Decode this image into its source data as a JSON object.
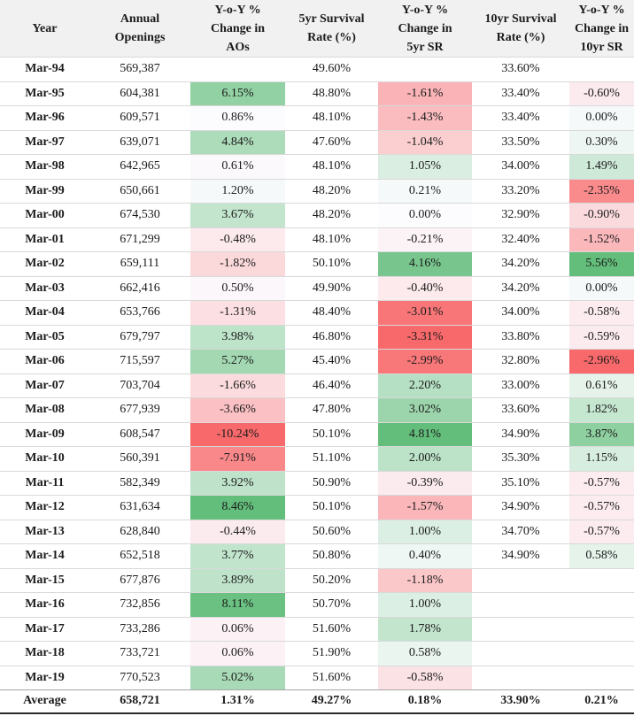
{
  "chart_data": {
    "type": "table",
    "columns": [
      "Year",
      "Annual\nOpenings",
      "Y-o-Y %\nChange in\nAOs",
      "5yr Survival\nRate (%)",
      "Y-o-Y %\nChange in\n5yr SR",
      "10yr Survival\nRate (%)",
      "Y-o-Y %\nChange in\n10yr SR"
    ],
    "rows": [
      [
        "Mar-94",
        "569,387",
        "",
        "49.60%",
        "",
        "33.60%",
        ""
      ],
      [
        "Mar-95",
        "604,381",
        "6.15%",
        "48.80%",
        "-1.61%",
        "33.40%",
        "-0.60%"
      ],
      [
        "Mar-96",
        "609,571",
        "0.86%",
        "48.10%",
        "-1.43%",
        "33.40%",
        "0.00%"
      ],
      [
        "Mar-97",
        "639,071",
        "4.84%",
        "47.60%",
        "-1.04%",
        "33.50%",
        "0.30%"
      ],
      [
        "Mar-98",
        "642,965",
        "0.61%",
        "48.10%",
        "1.05%",
        "34.00%",
        "1.49%"
      ],
      [
        "Mar-99",
        "650,661",
        "1.20%",
        "48.20%",
        "0.21%",
        "33.20%",
        "-2.35%"
      ],
      [
        "Mar-00",
        "674,530",
        "3.67%",
        "48.20%",
        "0.00%",
        "32.90%",
        "-0.90%"
      ],
      [
        "Mar-01",
        "671,299",
        "-0.48%",
        "48.10%",
        "-0.21%",
        "32.40%",
        "-1.52%"
      ],
      [
        "Mar-02",
        "659,111",
        "-1.82%",
        "50.10%",
        "4.16%",
        "34.20%",
        "5.56%"
      ],
      [
        "Mar-03",
        "662,416",
        "0.50%",
        "49.90%",
        "-0.40%",
        "34.20%",
        "0.00%"
      ],
      [
        "Mar-04",
        "653,766",
        "-1.31%",
        "48.40%",
        "-3.01%",
        "34.00%",
        "-0.58%"
      ],
      [
        "Mar-05",
        "679,797",
        "3.98%",
        "46.80%",
        "-3.31%",
        "33.80%",
        "-0.59%"
      ],
      [
        "Mar-06",
        "715,597",
        "5.27%",
        "45.40%",
        "-2.99%",
        "32.80%",
        "-2.96%"
      ],
      [
        "Mar-07",
        "703,704",
        "-1.66%",
        "46.40%",
        "2.20%",
        "33.00%",
        "0.61%"
      ],
      [
        "Mar-08",
        "677,939",
        "-3.66%",
        "47.80%",
        "3.02%",
        "33.60%",
        "1.82%"
      ],
      [
        "Mar-09",
        "608,547",
        "-10.24%",
        "50.10%",
        "4.81%",
        "34.90%",
        "3.87%"
      ],
      [
        "Mar-10",
        "560,391",
        "-7.91%",
        "51.10%",
        "2.00%",
        "35.30%",
        "1.15%"
      ],
      [
        "Mar-11",
        "582,349",
        "3.92%",
        "50.90%",
        "-0.39%",
        "35.10%",
        "-0.57%"
      ],
      [
        "Mar-12",
        "631,634",
        "8.46%",
        "50.10%",
        "-1.57%",
        "34.90%",
        "-0.57%"
      ],
      [
        "Mar-13",
        "628,840",
        "-0.44%",
        "50.60%",
        "1.00%",
        "34.70%",
        "-0.57%"
      ],
      [
        "Mar-14",
        "652,518",
        "3.77%",
        "50.80%",
        "0.40%",
        "34.90%",
        "0.58%"
      ],
      [
        "Mar-15",
        "677,876",
        "3.89%",
        "50.20%",
        "-1.18%",
        "",
        ""
      ],
      [
        "Mar-16",
        "732,856",
        "8.11%",
        "50.70%",
        "1.00%",
        "",
        ""
      ],
      [
        "Mar-17",
        "733,286",
        "0.06%",
        "51.60%",
        "1.78%",
        "",
        ""
      ],
      [
        "Mar-18",
        "733,721",
        "0.06%",
        "51.90%",
        "0.58%",
        "",
        ""
      ],
      [
        "Mar-19",
        "770,523",
        "5.02%",
        "51.60%",
        "-0.58%",
        "",
        ""
      ]
    ],
    "footer": [
      "Average",
      "658,721",
      "1.31%",
      "49.27%",
      "0.18%",
      "33.90%",
      "0.21%"
    ],
    "color_scales": {
      "2": {
        "min": -10.24,
        "mid": 0.86,
        "max": 8.46
      },
      "4": {
        "min": -3.31,
        "mid": 0.0,
        "max": 4.81
      },
      "6": {
        "min": -2.96,
        "mid": -0.285,
        "max": 5.56
      }
    },
    "scale_colors": {
      "min": "#F8696B",
      "mid": "#FCFCFF",
      "max": "#63BE7B"
    },
    "layout": {
      "legend": "none",
      "grid": "horizontal-lines"
    }
  },
  "styles": {
    "header_bg": "#f1f1f1",
    "row_line": "#d9d9d9",
    "footer_top_line": "#a6a6a6",
    "bottom_line": "#2b2b2b",
    "text_color": "#1b1b1b"
  }
}
